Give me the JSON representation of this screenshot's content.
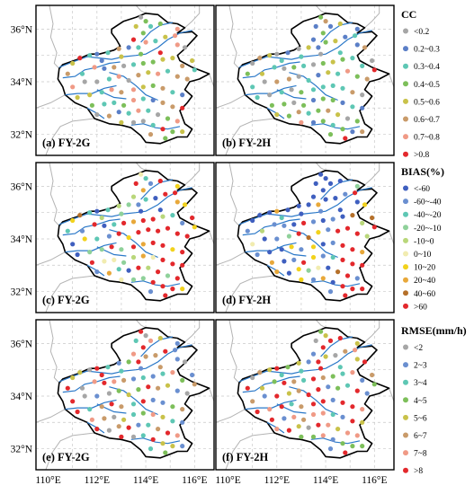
{
  "axes": {
    "lat_labels": [
      "36°N",
      "34°N",
      "32°N"
    ],
    "lon_labels": [
      "110°E",
      "112°E",
      "114°E",
      "116°E",
      "110°E",
      "112°E",
      "114°E",
      "116°E"
    ]
  },
  "panels": [
    {
      "label": "(a) FY-2G",
      "metric": "cc"
    },
    {
      "label": "(b) FY-2H",
      "metric": "cc"
    },
    {
      "label": "(c) FY-2G",
      "metric": "bias"
    },
    {
      "label": "(d) FY-2H",
      "metric": "bias"
    },
    {
      "label": "(e) FY-2G",
      "metric": "rmse"
    },
    {
      "label": "(f) FY-2H",
      "metric": "rmse"
    }
  ],
  "legends": [
    {
      "title": "CC",
      "items": [
        {
          "label": "<0.2",
          "color": "#a6a6a6"
        },
        {
          "label": "0.2~0.3",
          "color": "#5b7fc7"
        },
        {
          "label": "0.3~0.4",
          "color": "#5ec7b4"
        },
        {
          "label": "0.4~0.5",
          "color": "#7dbf5a"
        },
        {
          "label": "0.5~0.6",
          "color": "#c9c24a"
        },
        {
          "label": "0.6~0.7",
          "color": "#c99b6a"
        },
        {
          "label": "0.7~0.8",
          "color": "#f09a86"
        },
        {
          "label": ">0.8",
          "color": "#e3282c"
        }
      ]
    },
    {
      "title": "BIAS(%)",
      "items": [
        {
          "label": "<-60",
          "color": "#3f5fbf"
        },
        {
          "label": "-60~-40",
          "color": "#6a8fd0"
        },
        {
          "label": "-40~-20",
          "color": "#5ec7b4"
        },
        {
          "label": "-20~-10",
          "color": "#8fd19a"
        },
        {
          "label": "-10~0",
          "color": "#b9d77a"
        },
        {
          "label": "0~10",
          "color": "#f1ecb0"
        },
        {
          "label": "10~20",
          "color": "#f2d21c"
        },
        {
          "label": "20~40",
          "color": "#e8a83a"
        },
        {
          "label": "40~60",
          "color": "#b5702a"
        },
        {
          "label": ">60",
          "color": "#e3282c"
        }
      ]
    },
    {
      "title": "RMSE(mm/h)",
      "items": [
        {
          "label": "<2",
          "color": "#a6a6a6"
        },
        {
          "label": "2~3",
          "color": "#6a8fd0"
        },
        {
          "label": "3~4",
          "color": "#5ec7b4"
        },
        {
          "label": "4~5",
          "color": "#7dbf5a"
        },
        {
          "label": "5~6",
          "color": "#c9c24a"
        },
        {
          "label": "6~7",
          "color": "#c99b6a"
        },
        {
          "label": "7~8",
          "color": "#f09a86"
        },
        {
          "label": ">8",
          "color": "#e3282c"
        }
      ]
    }
  ],
  "colors": {
    "province_border": "#000000",
    "neighbor_border": "#b4b4b4",
    "river": "#2a78c8",
    "grid": "#c8c8c8",
    "frame": "#000000"
  }
}
